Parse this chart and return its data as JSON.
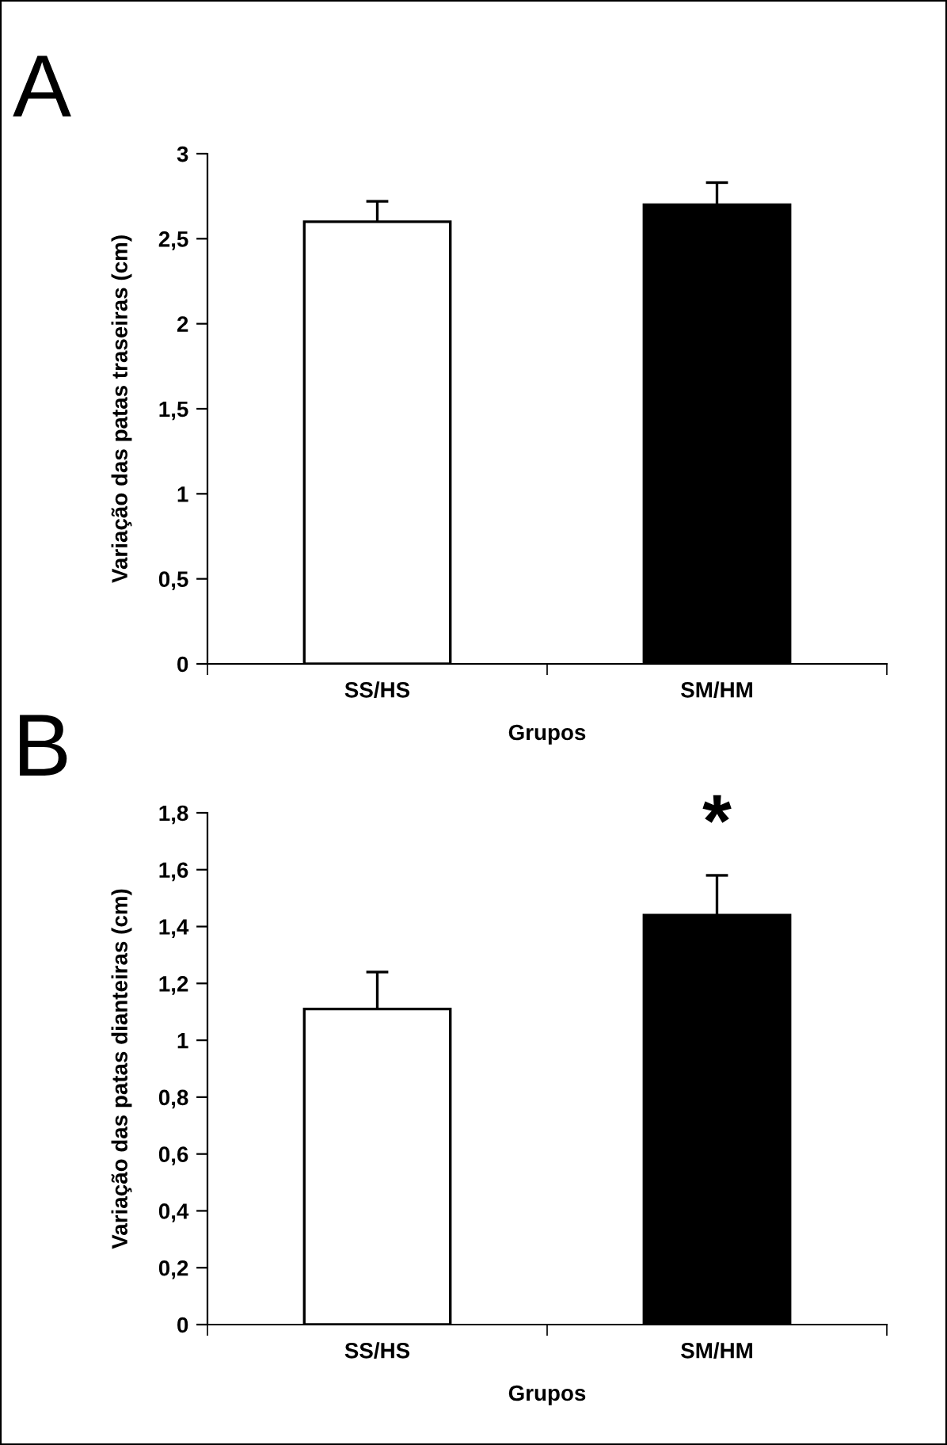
{
  "chart_data": [
    {
      "type": "bar",
      "title": "A",
      "xlabel": "Grupos",
      "ylabel": "Variação das patas traseiras (cm)",
      "categories": [
        "SS/HS",
        "SM/HM"
      ],
      "values": [
        2.6,
        2.7
      ],
      "colors": [
        "#ffffff",
        "#000000"
      ],
      "errors": [
        0.12,
        0.13
      ],
      "ylim": [
        0,
        3
      ],
      "yticks": [
        0,
        {
          "value": 0.5,
          "label": "0,5"
        },
        1,
        {
          "value": 1.5,
          "label": "1,5"
        },
        2,
        {
          "value": 2.5,
          "label": "2,5"
        },
        3
      ],
      "grid": false
    },
    {
      "type": "bar",
      "title": "B",
      "xlabel": "Grupos",
      "ylabel": "Variação das patas dianteiras (cm)",
      "categories": [
        "SS/HS",
        "SM/HM"
      ],
      "values": [
        1.11,
        1.44
      ],
      "colors": [
        "#ffffff",
        "#000000"
      ],
      "errors": [
        0.13,
        0.14
      ],
      "ylim": [
        0,
        1.8
      ],
      "yticks": [
        0,
        {
          "value": 0.2,
          "label": "0,2"
        },
        {
          "value": 0.4,
          "label": "0,4"
        },
        {
          "value": 0.6,
          "label": "0,6"
        },
        {
          "value": 0.8,
          "label": "0,8"
        },
        1,
        {
          "value": 1.2,
          "label": "1,2"
        },
        {
          "value": 1.4,
          "label": "1,4"
        },
        {
          "value": 1.6,
          "label": "1,6"
        },
        {
          "value": 1.8,
          "label": "1,8"
        }
      ],
      "grid": false,
      "annotations": [
        "*"
      ]
    }
  ]
}
